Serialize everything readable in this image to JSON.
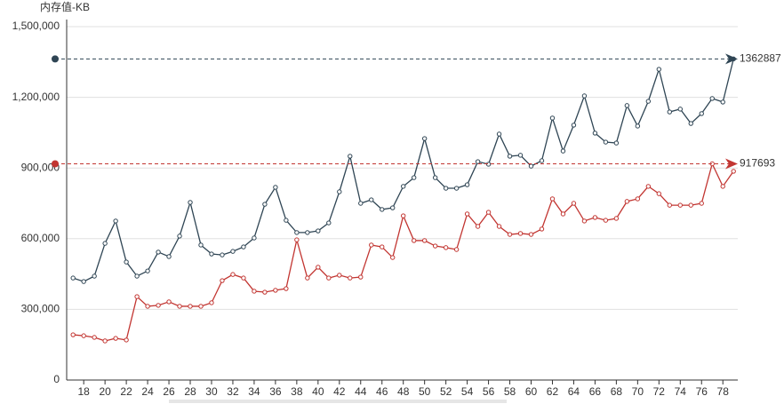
{
  "chart_data": {
    "type": "line",
    "y_axis_label": "内存值-KB",
    "x": [
      17,
      18,
      19,
      20,
      21,
      22,
      23,
      24,
      25,
      26,
      27,
      28,
      29,
      30,
      31,
      32,
      33,
      34,
      35,
      36,
      37,
      38,
      39,
      40,
      41,
      42,
      43,
      44,
      45,
      46,
      47,
      48,
      49,
      50,
      51,
      52,
      53,
      54,
      55,
      56,
      57,
      58,
      59,
      60,
      61,
      62,
      63,
      64,
      65,
      66,
      67,
      68,
      69,
      70,
      71,
      72,
      73,
      74,
      75,
      76,
      77,
      78,
      79
    ],
    "xlim": [
      16.4,
      79.4
    ],
    "xticks": [
      18,
      20,
      22,
      24,
      26,
      28,
      30,
      32,
      34,
      36,
      38,
      40,
      42,
      44,
      46,
      48,
      50,
      52,
      54,
      56,
      58,
      60,
      62,
      64,
      66,
      68,
      70,
      72,
      74,
      76,
      78
    ],
    "ylim": [
      0,
      1500000
    ],
    "yticks": [
      0,
      {
        "value": 300000,
        "label": "300,000"
      },
      {
        "value": 600000,
        "label": "600,000"
      },
      {
        "value": 900000,
        "label": "900,000"
      },
      {
        "value": 1200000,
        "label": "1,200,000"
      },
      {
        "value": 1500000,
        "label": "1,500,000"
      }
    ],
    "grid": true,
    "series": [
      {
        "color": "#2f4554",
        "max_label": 1362887,
        "values": [
          433000,
          418000,
          441000,
          580000,
          675000,
          501000,
          441000,
          463000,
          543000,
          524000,
          611000,
          754000,
          573000,
          535000,
          531000,
          546000,
          565000,
          603000,
          746000,
          818000,
          678000,
          626000,
          626000,
          633000,
          667000,
          799000,
          950000,
          750000,
          765000,
          724000,
          731000,
          822000,
          859000,
          1025000,
          859000,
          814000,
          814000,
          829000,
          927000,
          916000,
          1044000,
          950000,
          954000,
          908000,
          931000,
          1112000,
          972000,
          1082000,
          1206000,
          1048000,
          1010000,
          1006000,
          1165000,
          1078000,
          1183000,
          1319000,
          1138000,
          1150000,
          1089000,
          1131000,
          1195000,
          1180000,
          1362887
        ]
      },
      {
        "color": "#c23531",
        "max_label": 917693,
        "values": [
          192000,
          188000,
          181000,
          166000,
          177000,
          170000,
          354000,
          313000,
          317000,
          332000,
          313000,
          313000,
          313000,
          328000,
          422000,
          448000,
          433000,
          377000,
          373000,
          381000,
          388000,
          595000,
          433000,
          479000,
          433000,
          445000,
          433000,
          437000,
          573000,
          565000,
          520000,
          697000,
          592000,
          592000,
          569000,
          562000,
          554000,
          705000,
          652000,
          712000,
          652000,
          618000,
          622000,
          618000,
          641000,
          769000,
          705000,
          750000,
          675000,
          690000,
          678000,
          686000,
          758000,
          769000,
          822000,
          791000,
          742000,
          742000,
          742000,
          750000,
          917693,
          822000,
          886000
        ]
      }
    ]
  }
}
